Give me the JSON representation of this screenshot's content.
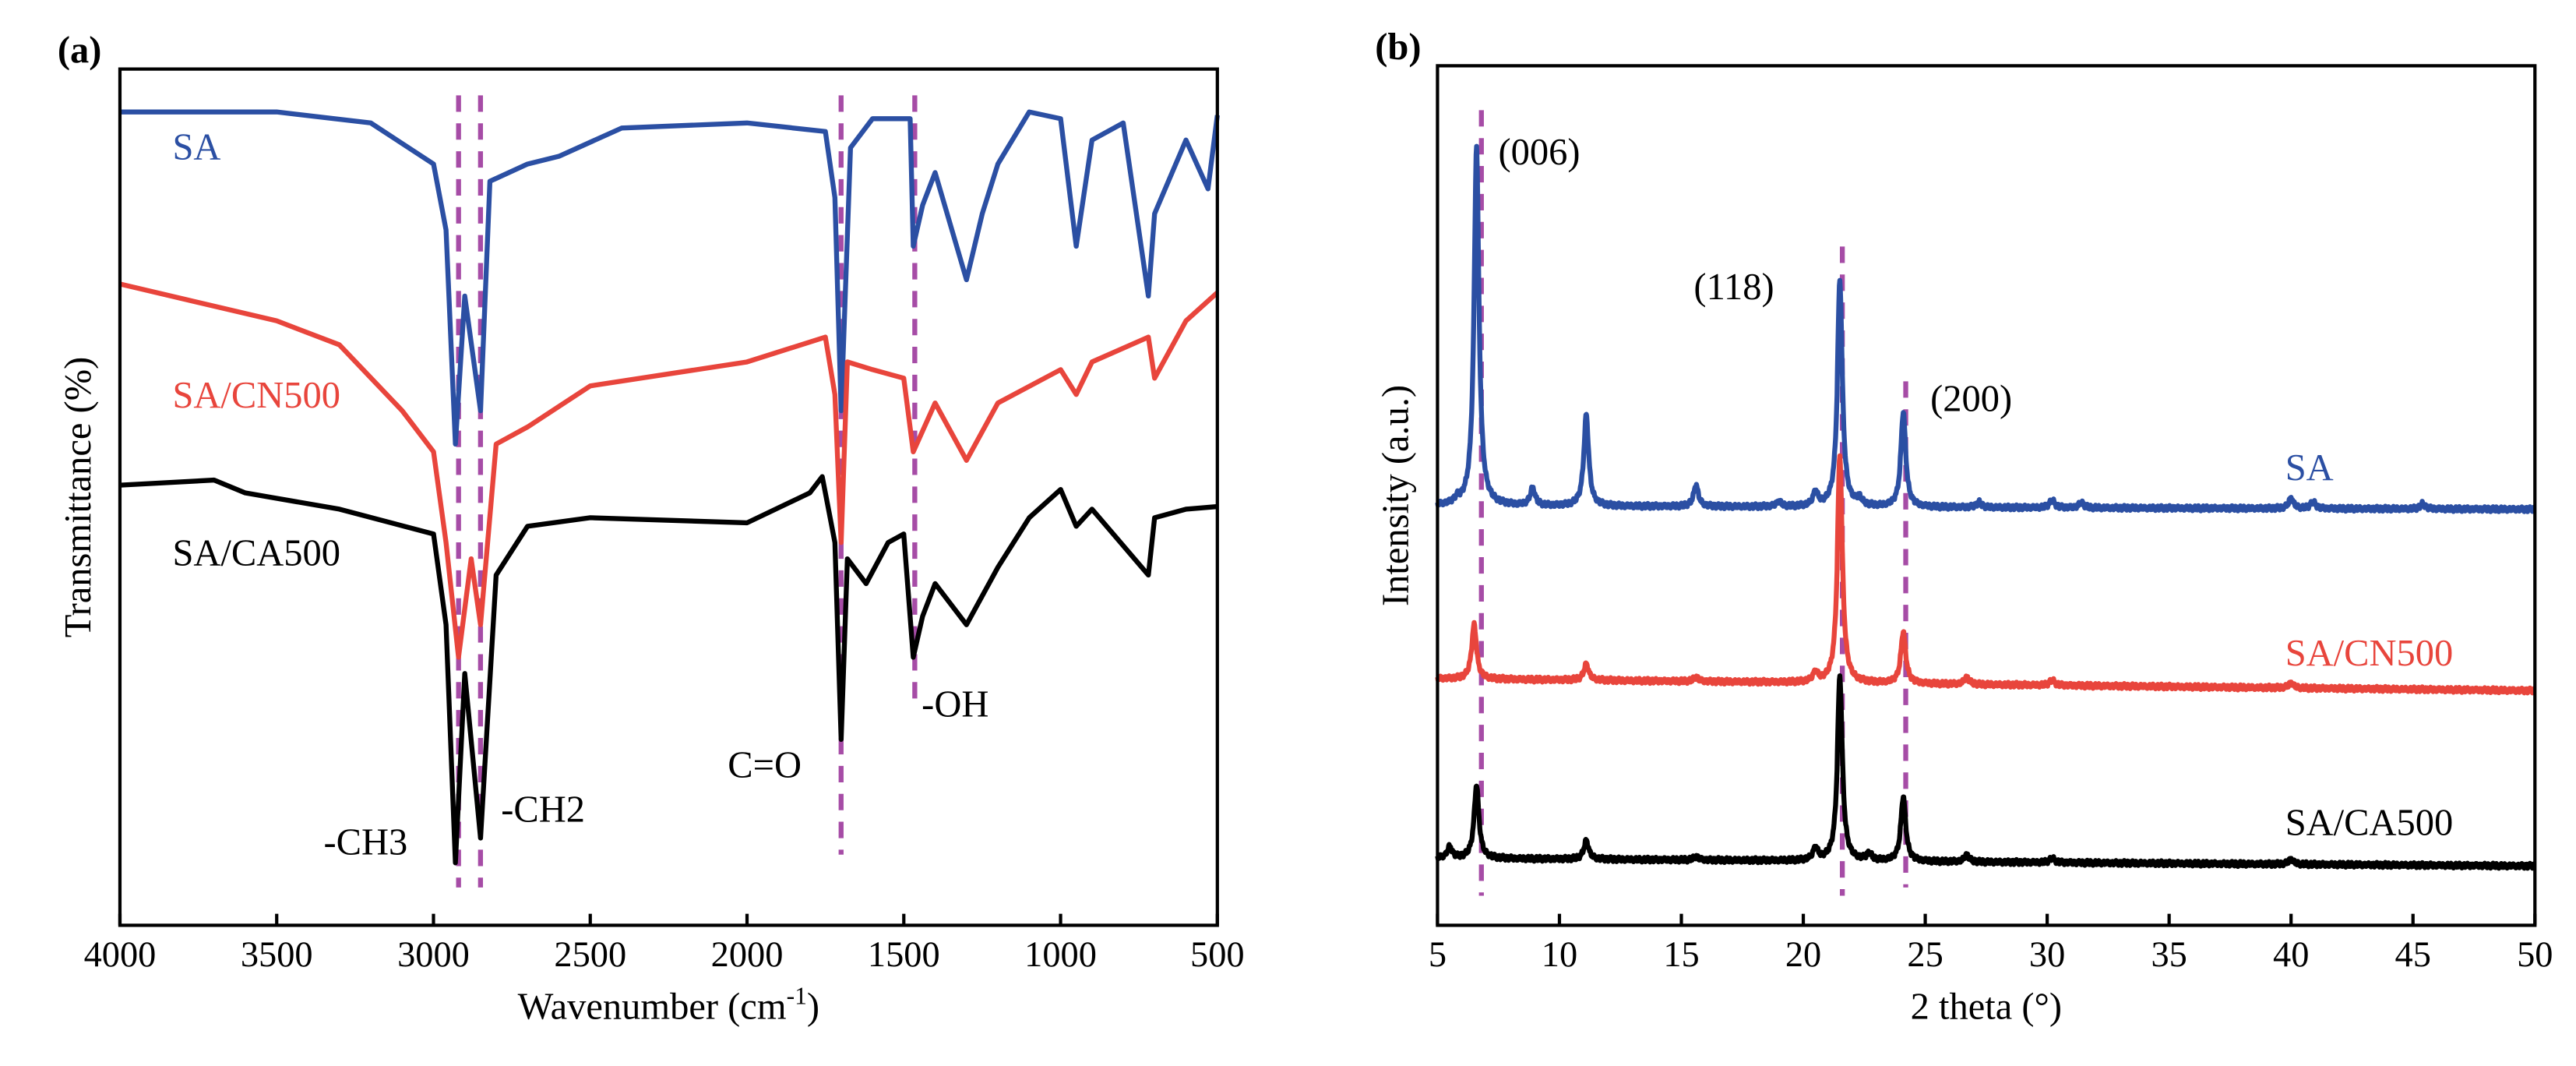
{
  "colors": {
    "SA": "#2b4fa3",
    "SA/CN500": "#e8453c",
    "SA/CA500": "#000000",
    "guide": "#a64ca6"
  },
  "chart_data": [
    {
      "panel": "(a)",
      "type": "line",
      "xlabel": "Wavenumber (cm",
      "xlabel_sup": "-1",
      "xlabel_end": ")",
      "ylabel": "Transmittance (%)",
      "xlim": [
        4000,
        500
      ],
      "ylim": [
        0,
        100
      ],
      "x_reversed": true,
      "y_ticks_shown": false,
      "xticks": [
        4000,
        3500,
        3000,
        2500,
        2000,
        1500,
        1000,
        500
      ],
      "xtick_labels": [
        "4000",
        "3500",
        "3000",
        "2500",
        "2000",
        "1500",
        "1000",
        "500"
      ],
      "guides": [
        2920,
        2850,
        1700,
        1465
      ],
      "annotations": [
        {
          "text": "-CH3",
          "x": 2920
        },
        {
          "text": "-CH2",
          "x": 2850
        },
        {
          "text": "C=O",
          "x": 1700
        },
        {
          "text": "-OH",
          "x": 1465
        }
      ],
      "series": [
        {
          "name": "SA",
          "points": [
            [
              4000,
              95
            ],
            [
              3500,
              95
            ],
            [
              3200,
              93.7
            ],
            [
              3000,
              88.9
            ],
            [
              2960,
              81.2
            ],
            [
              2930,
              56.2
            ],
            [
              2900,
              73.5
            ],
            [
              2850,
              60.1
            ],
            [
              2820,
              86.9
            ],
            [
              2700,
              88.9
            ],
            [
              2600,
              89.8
            ],
            [
              2400,
              93.1
            ],
            [
              2000,
              93.7
            ],
            [
              1750,
              92.7
            ],
            [
              1720,
              85
            ],
            [
              1700,
              60.1
            ],
            [
              1670,
              90.8
            ],
            [
              1600,
              94.2
            ],
            [
              1480,
              94.2
            ],
            [
              1470,
              79.3
            ],
            [
              1440,
              84.1
            ],
            [
              1400,
              87.9
            ],
            [
              1300,
              75.4
            ],
            [
              1250,
              83.1
            ],
            [
              1200,
              88.9
            ],
            [
              1100,
              95
            ],
            [
              1000,
              94.2
            ],
            [
              950,
              79.3
            ],
            [
              900,
              91.7
            ],
            [
              800,
              93.7
            ],
            [
              720,
              73.5
            ],
            [
              700,
              83.1
            ],
            [
              600,
              91.7
            ],
            [
              530,
              86
            ],
            [
              500,
              94.6
            ]
          ]
        },
        {
          "name": "SA/CN500",
          "points": [
            [
              4000,
              74.9
            ],
            [
              3500,
              70.6
            ],
            [
              3300,
              67.8
            ],
            [
              3100,
              60.1
            ],
            [
              3000,
              55.3
            ],
            [
              2960,
              44.7
            ],
            [
              2920,
              31.3
            ],
            [
              2880,
              42.8
            ],
            [
              2850,
              35.1
            ],
            [
              2800,
              56.2
            ],
            [
              2700,
              58.2
            ],
            [
              2500,
              63
            ],
            [
              2000,
              65.8
            ],
            [
              1750,
              68.7
            ],
            [
              1720,
              62
            ],
            [
              1700,
              44.7
            ],
            [
              1680,
              65.8
            ],
            [
              1600,
              64.9
            ],
            [
              1500,
              63.9
            ],
            [
              1470,
              55.3
            ],
            [
              1400,
              61
            ],
            [
              1300,
              54.3
            ],
            [
              1200,
              61
            ],
            [
              1000,
              64.9
            ],
            [
              950,
              62
            ],
            [
              900,
              65.8
            ],
            [
              720,
              68.7
            ],
            [
              700,
              63.9
            ],
            [
              600,
              70.6
            ],
            [
              500,
              73.9
            ]
          ]
        },
        {
          "name": "SA/CA500",
          "points": [
            [
              4000,
              51.4
            ],
            [
              3700,
              52
            ],
            [
              3600,
              50.5
            ],
            [
              3300,
              48.6
            ],
            [
              3000,
              45.7
            ],
            [
              2960,
              35.1
            ],
            [
              2930,
              7.3
            ],
            [
              2900,
              29.4
            ],
            [
              2850,
              10.2
            ],
            [
              2800,
              40.9
            ],
            [
              2700,
              46.6
            ],
            [
              2500,
              47.6
            ],
            [
              2000,
              47
            ],
            [
              1800,
              50.5
            ],
            [
              1760,
              52.4
            ],
            [
              1720,
              44.7
            ],
            [
              1700,
              21.7
            ],
            [
              1680,
              42.8
            ],
            [
              1620,
              39.9
            ],
            [
              1550,
              44.7
            ],
            [
              1500,
              45.7
            ],
            [
              1470,
              31.3
            ],
            [
              1440,
              36.1
            ],
            [
              1400,
              39.9
            ],
            [
              1300,
              35.1
            ],
            [
              1200,
              41.8
            ],
            [
              1100,
              47.6
            ],
            [
              1000,
              50.9
            ],
            [
              950,
              46.6
            ],
            [
              900,
              48.6
            ],
            [
              720,
              40.9
            ],
            [
              700,
              47.6
            ],
            [
              600,
              48.6
            ],
            [
              500,
              48.9
            ]
          ]
        }
      ]
    },
    {
      "panel": "(b)",
      "type": "line",
      "xlabel": "2 theta (°)",
      "ylabel": "Intensity (a.u.)",
      "xlim": [
        5,
        50
      ],
      "ylim": [
        0,
        100
      ],
      "y_ticks_shown": false,
      "xticks": [
        5,
        10,
        15,
        20,
        25,
        30,
        35,
        40,
        45,
        50
      ],
      "xtick_labels": [
        "5",
        "10",
        "15",
        "20",
        "25",
        "30",
        "35",
        "40",
        "45",
        "50"
      ],
      "guides": [
        6.8,
        21.6,
        24.2
      ],
      "annotations": [
        {
          "text": "(006)",
          "x": 6.8
        },
        {
          "text": "(118)",
          "x": 21.6
        },
        {
          "text": "(200)",
          "x": 24.2
        }
      ],
      "series": [
        {
          "name": "SA",
          "baseline": [
            48.8,
            48.4
          ],
          "peaks": [
            [
              5.8,
              0.5
            ],
            [
              6.6,
              42
            ],
            [
              8.9,
              2
            ],
            [
              11.1,
              10.7
            ],
            [
              15.6,
              2.5
            ],
            [
              19,
              0.6
            ],
            [
              20.5,
              1.6
            ],
            [
              21.5,
              26.3
            ],
            [
              22.3,
              0.8
            ],
            [
              24.1,
              11
            ],
            [
              27.2,
              0.6
            ],
            [
              30.2,
              0.9
            ],
            [
              31.4,
              0.6
            ],
            [
              40,
              1.2
            ],
            [
              40.9,
              0.8
            ],
            [
              45.4,
              0.6
            ]
          ]
        },
        {
          "name": "SA/CN500",
          "baseline": [
            28.7,
            27.3
          ],
          "peaks": [
            [
              6.5,
              6.3
            ],
            [
              11.1,
              1.9
            ],
            [
              15.6,
              0.5
            ],
            [
              20.5,
              1.1
            ],
            [
              21.5,
              26.4
            ],
            [
              24.1,
              6
            ],
            [
              26.7,
              0.8
            ],
            [
              30.2,
              0.6
            ],
            [
              40,
              0.6
            ]
          ]
        },
        {
          "name": "SA/CA500",
          "baseline": [
            7.8,
            6.9
          ],
          "peaks": [
            [
              5.5,
              1.3
            ],
            [
              6.6,
              8.6
            ],
            [
              11.1,
              2.2
            ],
            [
              15.6,
              0.4
            ],
            [
              20.5,
              1.4
            ],
            [
              21.5,
              21.5
            ],
            [
              22.7,
              0.8
            ],
            [
              24.1,
              7.5
            ],
            [
              26.7,
              0.8
            ],
            [
              30.2,
              0.5
            ],
            [
              40,
              0.6
            ]
          ]
        }
      ]
    }
  ]
}
